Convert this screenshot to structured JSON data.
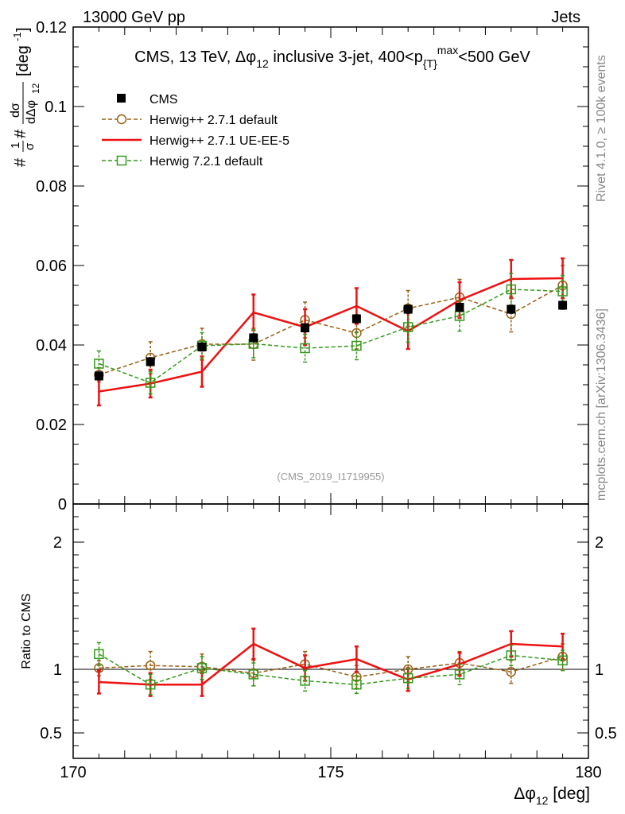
{
  "header": {
    "left": "13000 GeV pp",
    "right": "Jets",
    "side_events": "Rivet 4.1.0, ≥ 100k events",
    "side_site": "mcplots.cern.ch [arXiv:1306.3436]"
  },
  "chart_data": [
    {
      "type": "line",
      "panel": "main",
      "title_pre": "CMS, 13 TeV, ",
      "title_var": "Δφ",
      "title_var_sub": "12",
      "title_mid": " inclusive 3-jet, 400<p",
      "title_sub": "{T}",
      "title_sup": "max",
      "title_post": "<500 GeV",
      "watermark": "(CMS_2019_I1719955)",
      "ylabel_a": "#",
      "ylabel_frac_num": "1",
      "ylabel_frac_den": "σ",
      "ylabel_b": "#",
      "ylabel_d_num": "dσ",
      "ylabel_d_den": "dΔφ",
      "ylabel_d_den_sub": "12",
      "ylabel_unit": "[deg",
      "ylabel_unit_sup": "-1",
      "ylabel_unit_close": "]",
      "xlim": [
        170,
        180
      ],
      "ylim": [
        0,
        0.12
      ],
      "yticks": [
        {
          "v": 0,
          "label": "0"
        },
        {
          "v": 0.02,
          "label": "0.02"
        },
        {
          "v": 0.04,
          "label": "0.04"
        },
        {
          "v": 0.06,
          "label": "0.06"
        },
        {
          "v": 0.08,
          "label": "0.08"
        },
        {
          "v": 0.1,
          "label": "0.1"
        },
        {
          "v": 0.12,
          "label": "0.12"
        }
      ],
      "x": [
        170.5,
        171.5,
        172.5,
        173.5,
        174.5,
        175.5,
        176.5,
        177.5,
        178.5,
        179.5
      ],
      "series": [
        {
          "name": "CMS",
          "style": "data",
          "color": "#000000",
          "values": [
            0.0322,
            0.0358,
            0.0395,
            0.0418,
            0.0443,
            0.0466,
            0.049,
            0.0495,
            0.049,
            0.05
          ],
          "errors": [
            0.001,
            0.001,
            0.001,
            0.001,
            0.001,
            0.001,
            0.001,
            0.001,
            0.001,
            0.001
          ]
        },
        {
          "name": "Herwig++ 2.7.1 default",
          "style": "circle-dashed",
          "color": "#996015",
          "values": [
            0.0325,
            0.0368,
            0.0402,
            0.0402,
            0.0463,
            0.043,
            0.0492,
            0.052,
            0.0478,
            0.055
          ],
          "errors": [
            0.0018,
            0.004,
            0.004,
            0.004,
            0.0045,
            0.004,
            0.0045,
            0.0045,
            0.0045,
            0.005
          ]
        },
        {
          "name": "Herwig++ 2.7.1 UE-EE-5",
          "style": "solid",
          "color": "#ee1111",
          "values": [
            0.0283,
            0.0303,
            0.0333,
            0.0482,
            0.0445,
            0.0498,
            0.0435,
            0.0513,
            0.0566,
            0.0568
          ],
          "errors": [
            0.0035,
            0.0035,
            0.0038,
            0.0045,
            0.0045,
            0.0045,
            0.0045,
            0.0045,
            0.0048,
            0.005
          ]
        },
        {
          "name": "Herwig 7.2.1 default",
          "style": "square-dashed",
          "color": "#33991a",
          "values": [
            0.0353,
            0.0305,
            0.0398,
            0.0403,
            0.0392,
            0.0398,
            0.0445,
            0.0473,
            0.054,
            0.0535
          ],
          "errors": [
            0.0032,
            0.0028,
            0.0033,
            0.0035,
            0.0035,
            0.0035,
            0.0038,
            0.0038,
            0.004,
            0.004
          ]
        }
      ]
    },
    {
      "type": "line",
      "panel": "ratio",
      "ylabel": "Ratio to CMS",
      "xlabel_pre": "Δφ",
      "xlabel_sub": "12",
      "xlabel_post": " [deg]",
      "xlim": [
        170,
        180
      ],
      "ylim": [
        0.3,
        2.3
      ],
      "xticks": [
        {
          "v": 170,
          "label": "170"
        },
        {
          "v": 175,
          "label": "175"
        },
        {
          "v": 180,
          "label": "180"
        }
      ],
      "yticks": [
        {
          "v": 0.5,
          "label": "0.5"
        },
        {
          "v": 1,
          "label": "1"
        },
        {
          "v": 2,
          "label": "2"
        }
      ],
      "x": [
        170.5,
        171.5,
        172.5,
        173.5,
        174.5,
        175.5,
        176.5,
        177.5,
        178.5,
        179.5
      ],
      "series": [
        {
          "name": "Herwig++ 2.7.1 default",
          "style": "circle-dashed",
          "color": "#996015",
          "values": [
            1.01,
            1.03,
            1.02,
            0.97,
            1.04,
            0.94,
            1.0,
            1.05,
            0.98,
            1.1
          ],
          "errors": [
            0.06,
            0.11,
            0.1,
            0.1,
            0.1,
            0.09,
            0.1,
            0.09,
            0.09,
            0.1
          ]
        },
        {
          "name": "Herwig++ 2.7.1 UE-EE-5",
          "style": "solid",
          "color": "#ee1111",
          "values": [
            0.9,
            0.88,
            0.88,
            1.2,
            1.01,
            1.08,
            0.92,
            1.04,
            1.2,
            1.18
          ],
          "errors": [
            0.09,
            0.09,
            0.09,
            0.12,
            0.1,
            0.1,
            0.09,
            0.09,
            0.1,
            0.1
          ]
        },
        {
          "name": "Herwig 7.2.1 default",
          "style": "square-dashed",
          "color": "#33991a",
          "values": [
            1.12,
            0.88,
            1.01,
            0.96,
            0.91,
            0.88,
            0.93,
            0.96,
            1.11,
            1.07
          ],
          "errors": [
            0.09,
            0.08,
            0.09,
            0.09,
            0.08,
            0.07,
            0.08,
            0.08,
            0.08,
            0.08
          ]
        }
      ]
    }
  ]
}
